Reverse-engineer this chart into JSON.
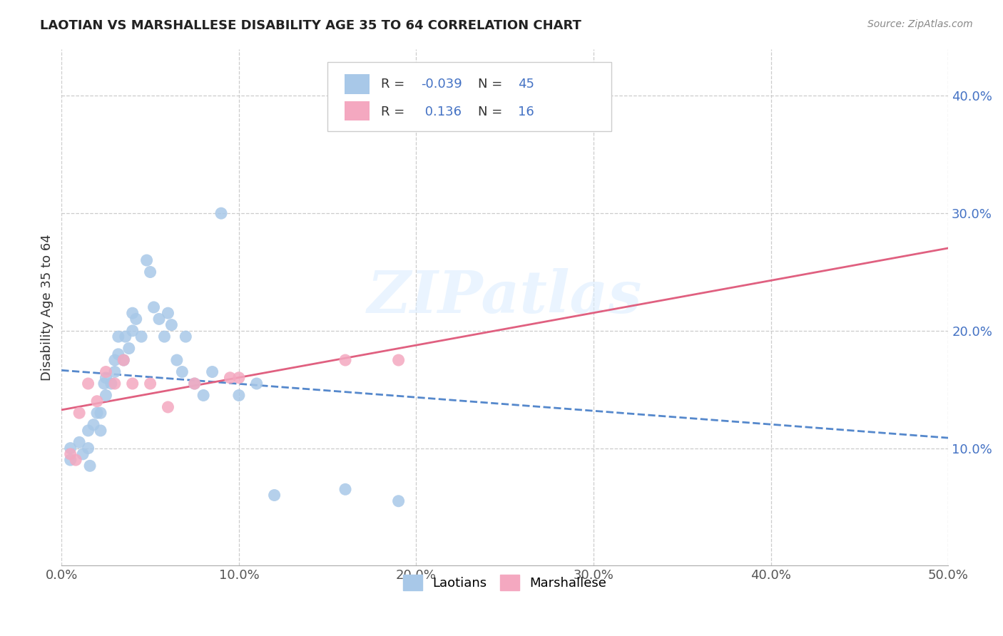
{
  "title": "LAOTIAN VS MARSHALLESE DISABILITY AGE 35 TO 64 CORRELATION CHART",
  "source": "Source: ZipAtlas.com",
  "ylabel": "Disability Age 35 to 64",
  "xlim": [
    0.0,
    0.5
  ],
  "ylim": [
    0.0,
    0.44
  ],
  "xticks": [
    0.0,
    0.1,
    0.2,
    0.3,
    0.4,
    0.5
  ],
  "xtick_labels": [
    "0.0%",
    "10.0%",
    "20.0%",
    "30.0%",
    "40.0%",
    "50.0%"
  ],
  "yticks": [
    0.1,
    0.2,
    0.3,
    0.4
  ],
  "ytick_labels": [
    "10.0%",
    "20.0%",
    "30.0%",
    "40.0%"
  ],
  "legend_labels": [
    "Laotians",
    "Marshallese"
  ],
  "laotian_color": "#a8c8e8",
  "marshallese_color": "#f4a8c0",
  "laotian_line_color": "#5588cc",
  "marshallese_line_color": "#e06080",
  "R_laotian": -0.039,
  "N_laotian": 45,
  "R_marshallese": 0.136,
  "N_marshallese": 16,
  "watermark_text": "ZIPatlas",
  "stats_color": "#4472c4",
  "R_label_color": "#333333",
  "laotian_x": [
    0.005,
    0.005,
    0.01,
    0.012,
    0.015,
    0.015,
    0.016,
    0.018,
    0.02,
    0.022,
    0.022,
    0.024,
    0.025,
    0.025,
    0.028,
    0.03,
    0.03,
    0.032,
    0.032,
    0.035,
    0.036,
    0.038,
    0.04,
    0.04,
    0.042,
    0.045,
    0.048,
    0.05,
    0.052,
    0.055,
    0.058,
    0.06,
    0.062,
    0.065,
    0.068,
    0.07,
    0.075,
    0.08,
    0.085,
    0.09,
    0.1,
    0.11,
    0.12,
    0.16,
    0.19
  ],
  "laotian_y": [
    0.1,
    0.09,
    0.105,
    0.095,
    0.115,
    0.1,
    0.085,
    0.12,
    0.13,
    0.115,
    0.13,
    0.155,
    0.145,
    0.16,
    0.155,
    0.175,
    0.165,
    0.18,
    0.195,
    0.175,
    0.195,
    0.185,
    0.2,
    0.215,
    0.21,
    0.195,
    0.26,
    0.25,
    0.22,
    0.21,
    0.195,
    0.215,
    0.205,
    0.175,
    0.165,
    0.195,
    0.155,
    0.145,
    0.165,
    0.3,
    0.145,
    0.155,
    0.06,
    0.065,
    0.055
  ],
  "marshallese_x": [
    0.005,
    0.008,
    0.01,
    0.015,
    0.02,
    0.025,
    0.03,
    0.035,
    0.04,
    0.05,
    0.06,
    0.075,
    0.095,
    0.1,
    0.16,
    0.19
  ],
  "marshallese_y": [
    0.095,
    0.09,
    0.13,
    0.155,
    0.14,
    0.165,
    0.155,
    0.175,
    0.155,
    0.155,
    0.135,
    0.155,
    0.16,
    0.16,
    0.175,
    0.175
  ]
}
